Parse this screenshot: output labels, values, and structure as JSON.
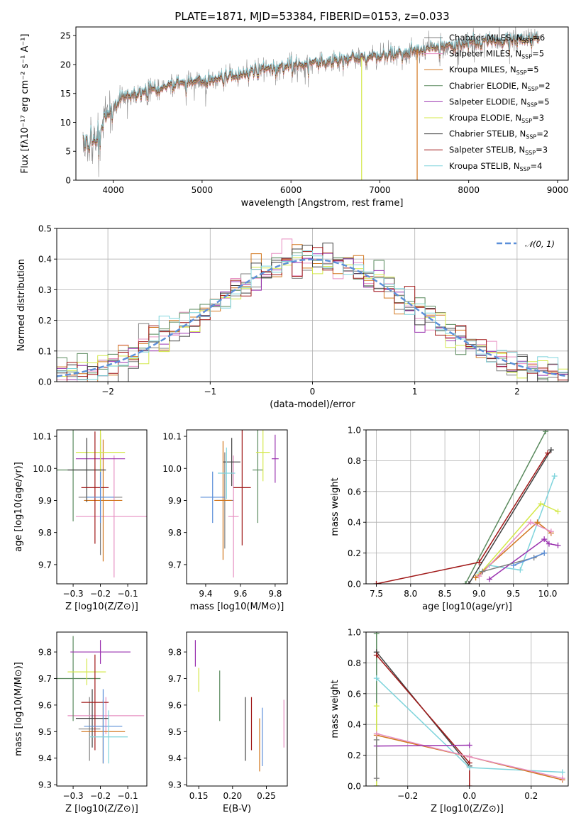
{
  "chart_data": [
    {
      "id": "spectrum",
      "type": "line",
      "title": "PLATE=1871, MJD=53384, FIBERID=0153, z=0.033",
      "xlabel": "wavelength [Angstrom, rest frame]",
      "ylabel": "Flux [fλ10⁻¹⁷ erg cm⁻² s⁻¹ A⁻¹]",
      "xlim": [
        3580,
        9120
      ],
      "ylim": [
        0,
        26.5
      ],
      "xticks": [
        "4000",
        "5000",
        "6000",
        "7000",
        "8000",
        "9000"
      ],
      "yticks": [
        "0",
        "5",
        "10",
        "15",
        "20",
        "25"
      ],
      "grid": false,
      "legend_position": "top-right",
      "legend": [
        {
          "name": "Chabrier MILES",
          "nssp": "6",
          "color": "#7f7f7f"
        },
        {
          "name": "Salpeter MILES",
          "nssp": "5",
          "color": "#e68fc2"
        },
        {
          "name": "Kroupa MILES",
          "nssp": "5",
          "color": "#d2771f"
        },
        {
          "name": "Chabrier ELODIE",
          "nssp": "2",
          "color": "#5a8a5e"
        },
        {
          "name": "Salpeter ELODIE",
          "nssp": "5",
          "color": "#9b34b0"
        },
        {
          "name": "Kroupa ELODIE",
          "nssp": "3",
          "color": "#d4e84a"
        },
        {
          "name": "Chabrier STELIB",
          "nssp": "2",
          "color": "#404040"
        },
        {
          "name": "Salpeter STELIB",
          "nssp": "3",
          "color": "#a01818"
        },
        {
          "name": "Kroupa STELIB",
          "nssp": "4",
          "color": "#7fd4dc"
        }
      ],
      "continuum": {
        "x": [
          3660,
          3750,
          3850,
          3950,
          4050,
          4200,
          4400,
          4600,
          4800,
          5000,
          5200,
          5400,
          5600,
          5800,
          6000,
          6200,
          6400,
          6600,
          6800,
          7000,
          7200,
          7400,
          7600,
          7800,
          8000,
          8200,
          8400,
          8600,
          8800
        ],
        "y": [
          6.5,
          6.8,
          8,
          11,
          13.5,
          14.5,
          15.5,
          16.3,
          16.8,
          17,
          17.5,
          18.2,
          18.8,
          19.3,
          19.8,
          20.2,
          20.6,
          20.9,
          21.2,
          21.5,
          21.9,
          22.4,
          23,
          23.3,
          23.6,
          24,
          24.2,
          24.4,
          24.6
        ]
      },
      "drops": [
        {
          "x": 6795,
          "color": "#d4e84a"
        },
        {
          "x": 7420,
          "color": "#d2771f"
        }
      ]
    },
    {
      "id": "residuals",
      "type": "step",
      "xlabel": "(data-model)/error",
      "ylabel": "Normed distribution",
      "xlim": [
        -2.5,
        2.5
      ],
      "ylim": [
        0,
        0.5
      ],
      "xticks": [
        "−2",
        "−1",
        "0",
        "1",
        "2"
      ],
      "yticks": [
        "0.0",
        "0.1",
        "0.2",
        "0.3",
        "0.4",
        "0.5"
      ],
      "grid": true,
      "legend": "𝒩(0, 1)",
      "legend_position": "top-right",
      "gaussian": {
        "mean": 0.0,
        "sigma": 1.0,
        "color": "#5b8fd9"
      },
      "bin_width": 0.1
    },
    {
      "id": "age_vs_Z",
      "type": "errorbar",
      "xlabel": "Z [log10(Z/Z⊙)]",
      "ylabel": "age [log10(age/yr)]",
      "xlim": [
        -0.36,
        -0.03
      ],
      "ylim": [
        9.64,
        10.12
      ],
      "xticks": [
        "−0.3",
        "−0.2",
        "−0.1"
      ],
      "yticks": [
        "9.7",
        "9.8",
        "9.9",
        "10.0",
        "10.1"
      ],
      "points": [
        {
          "x": -0.2,
          "y": 9.91,
          "xerr": 0.08,
          "yerr": 0.18,
          "color": "#7f7f7f"
        },
        {
          "x": -0.15,
          "y": 9.85,
          "xerr": 0.14,
          "yerr": 0.19,
          "color": "#e68fc2"
        },
        {
          "x": -0.19,
          "y": 9.9,
          "xerr": 0.07,
          "yerr": 0.19,
          "color": "#d2771f"
        },
        {
          "x": -0.3,
          "y": 9.995,
          "xerr": 0.1,
          "yerr": 0.16,
          "color": "#5a8a5e"
        },
        {
          "x": -0.2,
          "y": 10.03,
          "xerr": 0.09,
          "yerr": 0.08,
          "color": "#9b34b0"
        },
        {
          "x": -0.2,
          "y": 10.05,
          "xerr": 0.09,
          "yerr": 0.09,
          "color": "#d4e84a"
        },
        {
          "x": -0.25,
          "y": 9.995,
          "xerr": 0.07,
          "yerr": 0.1,
          "color": "#404040"
        },
        {
          "x": -0.22,
          "y": 9.94,
          "xerr": 0.05,
          "yerr": 0.175,
          "color": "#a01818"
        },
        {
          "x": -0.2,
          "y": 9.91,
          "xerr": 0.05,
          "yerr": 0.08,
          "color": "#5b8fd9"
        }
      ]
    },
    {
      "id": "age_vs_mass",
      "type": "errorbar",
      "xlabel": "mass [log10(M/M⊙)]",
      "ylabel": "",
      "xlim": [
        9.29,
        9.87
      ],
      "ylim": [
        9.64,
        10.12
      ],
      "xticks": [
        "9.4",
        "9.6",
        "9.8"
      ],
      "yticks": [
        "9.7",
        "9.8",
        "9.9",
        "10.0",
        "10.1"
      ],
      "points": [
        {
          "x": 9.51,
          "y": 9.9,
          "xerr": 0.05,
          "yerr": 0.15,
          "color": "#7f7f7f"
        },
        {
          "x": 9.56,
          "y": 9.85,
          "xerr": 0.03,
          "yerr": 0.19,
          "color": "#e68fc2"
        },
        {
          "x": 9.5,
          "y": 9.9,
          "xerr": 0.05,
          "yerr": 0.185,
          "color": "#d2771f"
        },
        {
          "x": 9.7,
          "y": 9.995,
          "xerr": 0.03,
          "yerr": 0.165,
          "color": "#5a8a5e"
        },
        {
          "x": 9.8,
          "y": 10.03,
          "xerr": 0.02,
          "yerr": 0.075,
          "color": "#9b34b0"
        },
        {
          "x": 9.73,
          "y": 10.05,
          "xerr": 0.04,
          "yerr": 0.09,
          "color": "#d4e84a"
        },
        {
          "x": 9.55,
          "y": 10.02,
          "xerr": 0.05,
          "yerr": 0.075,
          "color": "#404040"
        },
        {
          "x": 9.61,
          "y": 9.94,
          "xerr": 0.05,
          "yerr": 0.18,
          "color": "#a01818"
        },
        {
          "x": 9.44,
          "y": 9.91,
          "xerr": 0.07,
          "yerr": 0.08,
          "color": "#5b8fd9"
        },
        {
          "x": 9.52,
          "y": 9.985,
          "xerr": 0.05,
          "yerr": 0.08,
          "color": "#7fd4dc"
        }
      ]
    },
    {
      "id": "weight_vs_age",
      "type": "line",
      "xlabel": "age [log10(age/yr)]",
      "ylabel": "mass weight",
      "xlim": [
        7.35,
        10.3
      ],
      "ylim": [
        0,
        1
      ],
      "xticks": [
        "7.5",
        "8.0",
        "8.5",
        "9.0",
        "9.5",
        "10.0"
      ],
      "yticks": [
        "0.0",
        "0.2",
        "0.4",
        "0.6",
        "0.8",
        "1.0"
      ],
      "grid": true,
      "series": [
        {
          "color": "#5a8a5e",
          "x": [
            8.8,
            9.97
          ],
          "y": [
            0.0,
            0.99
          ]
        },
        {
          "color": "#404040",
          "x": [
            8.85,
            10.05
          ],
          "y": [
            0.0,
            0.87
          ]
        },
        {
          "color": "#a01818",
          "x": [
            7.5,
            9.0,
            10.0
          ],
          "y": [
            0.0,
            0.14,
            0.85
          ]
        },
        {
          "color": "#7fd4dc",
          "x": [
            9.0,
            9.15,
            9.6,
            10.1
          ],
          "y": [
            0.07,
            0.12,
            0.09,
            0.7
          ]
        },
        {
          "color": "#d4e84a",
          "x": [
            9.0,
            9.9,
            10.15
          ],
          "y": [
            0.06,
            0.52,
            0.47
          ]
        },
        {
          "color": "#d2771f",
          "x": [
            8.95,
            9.85,
            10.05
          ],
          "y": [
            0.04,
            0.4,
            0.33
          ]
        },
        {
          "color": "#e68fc2",
          "x": [
            9.0,
            9.75,
            10.05
          ],
          "y": [
            0.05,
            0.4,
            0.34
          ]
        },
        {
          "color": "#9b34b0",
          "x": [
            9.15,
            9.95,
            10.02,
            10.15
          ],
          "y": [
            0.03,
            0.29,
            0.26,
            0.25
          ]
        },
        {
          "color": "#7f7f7f",
          "x": [
            9.05,
            9.8,
            9.95
          ],
          "y": [
            0.08,
            0.17,
            0.2
          ]
        },
        {
          "color": "#5b8fd9",
          "x": [
            9.5,
            9.95
          ],
          "y": [
            0.12,
            0.2
          ]
        }
      ]
    },
    {
      "id": "mass_vs_Z",
      "type": "errorbar",
      "xlabel": "Z [log10(Z/Z⊙)]",
      "ylabel": "mass [log10(M/M⊙)]",
      "xlim": [
        -0.36,
        -0.03
      ],
      "ylim": [
        9.295,
        9.875
      ],
      "xticks": [
        "−0.3",
        "−0.2",
        "−0.1"
      ],
      "yticks": [
        "9.3",
        "9.4",
        "9.5",
        "9.6",
        "9.7",
        "9.8"
      ],
      "points": [
        {
          "x": -0.24,
          "y": 9.51,
          "xerr": 0.04,
          "yerr": 0.12,
          "color": "#7f7f7f"
        },
        {
          "x": -0.18,
          "y": 9.56,
          "xerr": 0.14,
          "yerr": 0.07,
          "color": "#e68fc2"
        },
        {
          "x": -0.19,
          "y": 9.5,
          "xerr": 0.08,
          "yerr": 0.12,
          "color": "#d2771f"
        },
        {
          "x": -0.3,
          "y": 9.7,
          "xerr": 0.1,
          "yerr": 0.16,
          "color": "#5a8a5e"
        },
        {
          "x": -0.2,
          "y": 9.8,
          "xerr": 0.11,
          "yerr": 0.045,
          "color": "#9b34b0"
        },
        {
          "x": -0.25,
          "y": 9.725,
          "xerr": 0.07,
          "yerr": 0.05,
          "color": "#d4e84a"
        },
        {
          "x": -0.23,
          "y": 9.55,
          "xerr": 0.06,
          "yerr": 0.11,
          "color": "#404040"
        },
        {
          "x": -0.22,
          "y": 9.61,
          "xerr": 0.05,
          "yerr": 0.18,
          "color": "#a01818"
        },
        {
          "x": -0.19,
          "y": 9.52,
          "xerr": 0.07,
          "yerr": 0.14,
          "color": "#5b8fd9"
        },
        {
          "x": -0.17,
          "y": 9.48,
          "xerr": 0.07,
          "yerr": 0.1,
          "color": "#7fd4dc"
        }
      ]
    },
    {
      "id": "mass_vs_EBV",
      "type": "errorbar",
      "xlabel": "E(B-V)",
      "ylabel": "",
      "xlim": [
        0.132,
        0.281
      ],
      "ylim": [
        9.295,
        9.875
      ],
      "xticks": [
        "0.15",
        "0.20",
        "0.25"
      ],
      "yticks": [
        "9.3",
        "9.4",
        "9.5",
        "9.6",
        "9.7",
        "9.8"
      ],
      "points": [
        {
          "x": 0.276,
          "y": 9.53,
          "xerr": 0,
          "yerr": 0.09,
          "color": "#e68fc2"
        },
        {
          "x": 0.24,
          "y": 9.45,
          "xerr": 0,
          "yerr": 0.1,
          "color": "#d2771f"
        },
        {
          "x": 0.181,
          "y": 9.635,
          "xerr": 0,
          "yerr": 0.095,
          "color": "#5a8a5e"
        },
        {
          "x": 0.145,
          "y": 9.795,
          "xerr": 0,
          "yerr": 0.05,
          "color": "#9b34b0"
        },
        {
          "x": 0.15,
          "y": 9.695,
          "xerr": 0,
          "yerr": 0.045,
          "color": "#d4e84a"
        },
        {
          "x": 0.219,
          "y": 9.51,
          "xerr": 0,
          "yerr": 0.12,
          "color": "#404040"
        },
        {
          "x": 0.228,
          "y": 9.53,
          "xerr": 0,
          "yerr": 0.1,
          "color": "#a01818"
        },
        {
          "x": 0.244,
          "y": 9.48,
          "xerr": 0,
          "yerr": 0.11,
          "color": "#5b8fd9"
        }
      ]
    },
    {
      "id": "weight_vs_Z",
      "type": "line",
      "xlabel": "Z [log10(Z/Z⊙)]",
      "ylabel": "mass weight",
      "xlim": [
        -0.335,
        0.32
      ],
      "ylim": [
        0,
        1
      ],
      "xticks": [
        "−0.2",
        "0.0",
        "0.2"
      ],
      "yticks": [
        "0.0",
        "0.2",
        "0.4",
        "0.6",
        "0.8",
        "1.0"
      ],
      "grid": true,
      "series": [
        {
          "color": "#5a8a5e",
          "x": [
            -0.301,
            -0.301
          ],
          "y": [
            0.0,
            0.99
          ]
        },
        {
          "color": "#404040",
          "x": [
            -0.301,
            0.0
          ],
          "y": [
            0.87,
            0.13
          ]
        },
        {
          "color": "#a01818",
          "x": [
            -0.301,
            0.0,
            0.0
          ],
          "y": [
            0.85,
            0.15,
            0.0
          ]
        },
        {
          "color": "#7fd4dc",
          "x": [
            -0.301,
            0.0,
            0.301
          ],
          "y": [
            0.7,
            0.12,
            0.09
          ]
        },
        {
          "color": "#d4e84a",
          "x": [
            -0.301,
            -0.301
          ],
          "y": [
            0.0,
            0.52
          ]
        },
        {
          "color": "#d2771f",
          "x": [
            -0.301,
            0.0,
            0.301
          ],
          "y": [
            0.33,
            0.19,
            0.04
          ]
        },
        {
          "color": "#e68fc2",
          "x": [
            -0.301,
            0.0,
            0.301
          ],
          "y": [
            0.34,
            0.19,
            0.05
          ]
        },
        {
          "color": "#9b34b0",
          "x": [
            -0.301,
            0.0
          ],
          "y": [
            0.26,
            0.265
          ]
        },
        {
          "color": "#7f7f7f",
          "x": [
            -0.301,
            -0.301
          ],
          "y": [
            0.05,
            0.3
          ]
        }
      ]
    }
  ]
}
